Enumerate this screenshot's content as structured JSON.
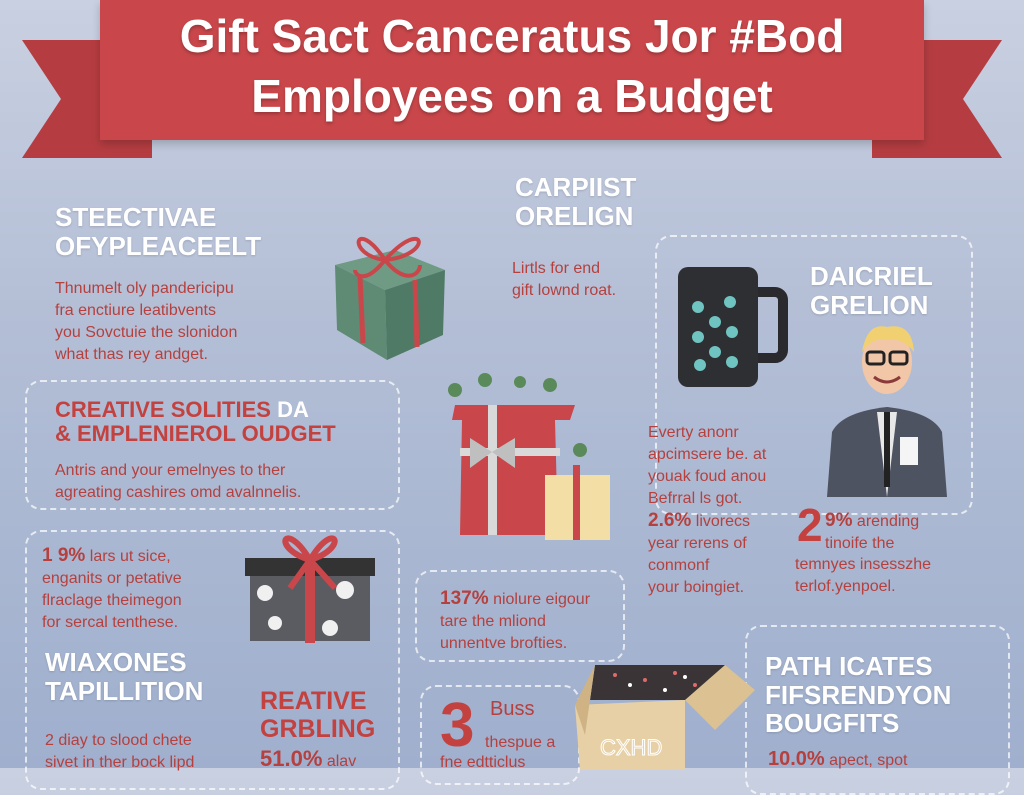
{
  "header": {
    "title_line1": "Gift Sact Canceratus Jor #Bod",
    "title_line2": "Employees on a Budget"
  },
  "sections": {
    "s1": {
      "heading1": "STEECTIVAE",
      "heading2": "OFYPLEACEELT",
      "body": [
        "Thnumelt oly pandericipu",
        "fra enctiure leatibvents",
        "you Sovctuie the slonidon",
        "what thas rey andget."
      ]
    },
    "s2": {
      "heading1": "CARPIIST",
      "heading2": "ORELIGN",
      "body": [
        "Lirtls for end",
        "gift lownd roat."
      ]
    },
    "s3": {
      "heading1": "DAICRIEL",
      "heading2": "GRELION"
    },
    "s4": {
      "heading1": "CREATIVE SOLITIES",
      "heading1_accent": "DA",
      "heading2": "& EMPLENIEROL OUDGET",
      "body": [
        "Antris and your emelnyes to ther",
        "agreating cashires omd avalnnelis."
      ]
    },
    "s5": {
      "body": [
        "Everty anonr",
        "apcimsere be. at",
        "youak foud anou",
        "Befrral ls got."
      ],
      "stat": "2.6%",
      "stat_body": [
        "livorecs",
        "year rerens of",
        "conmonf",
        "your boingiet."
      ]
    },
    "s6": {
      "stat_big": "2",
      "stat": "9%",
      "stat_body": [
        "arending",
        "tinoife the",
        "temnyes insesszhe",
        "terlof.yenpoel."
      ]
    },
    "s7": {
      "stat": "1 9%",
      "body": [
        "lars ut sice,",
        "enganits  or petative",
        "flraclage theimegon",
        "for sercal tenthese."
      ]
    },
    "s8": {
      "stat": "137%",
      "body": [
        "niolure eigour",
        "tare the mliond",
        "unnentve brofties."
      ]
    },
    "s9": {
      "heading1": "WIAXONES",
      "heading2": "TAPILLITION",
      "body": [
        "2 diay to slood chete",
        "sivet in ther bock lipd"
      ]
    },
    "s10": {
      "heading1": "REATIVE",
      "heading2": "GRBLING",
      "stat": "51.0%",
      "stat_tail": "alav"
    },
    "s11": {
      "stat_big": "3",
      "line1": "Buss",
      "line2": "thespue a",
      "line3": "fne edtticlus"
    },
    "s12": {
      "heading1": "PATH ICATES",
      "heading2": "FIFSRENDYON",
      "heading3": "BOUGFITS",
      "stat": "10.0%",
      "stat_body": "apect, spot"
    }
  },
  "box_label": "CXHD",
  "colors": {
    "banner": "#c9474b",
    "accent": "#c3423f",
    "background": "#b4bfd6",
    "text_white": "#ffffff"
  }
}
